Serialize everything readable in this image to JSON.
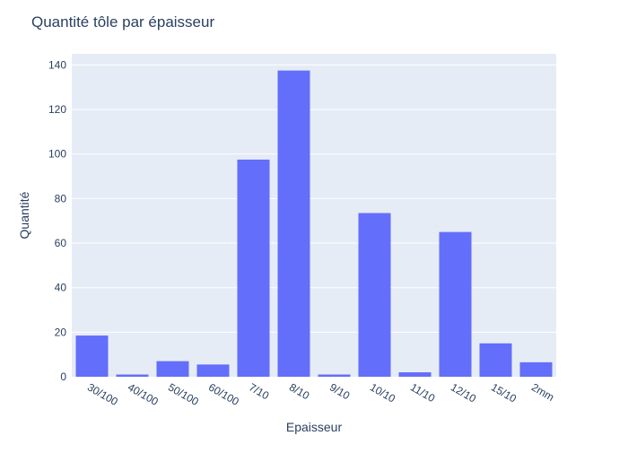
{
  "chart_data": {
    "type": "bar",
    "title": "Quantité tôle par épaisseur",
    "xlabel": "Epaisseur",
    "ylabel": "Quantité",
    "categories": [
      "30/100",
      "40/100",
      "50/100",
      "60/100",
      "7/10",
      "8/10",
      "9/10",
      "10/10",
      "11/10",
      "12/10",
      "15/10",
      "2mm"
    ],
    "values": [
      18.5,
      1,
      7,
      5.5,
      97.5,
      137.5,
      1,
      73.5,
      2,
      65,
      15,
      6.5
    ],
    "ylim": [
      0,
      145
    ],
    "yticks": [
      0,
      20,
      40,
      60,
      80,
      100,
      120,
      140
    ],
    "grid": true,
    "colors": {
      "bar": "#636efa",
      "plot_bg": "#e5ecf6",
      "grid": "#ffffff",
      "text": "#2a3f5f"
    }
  }
}
